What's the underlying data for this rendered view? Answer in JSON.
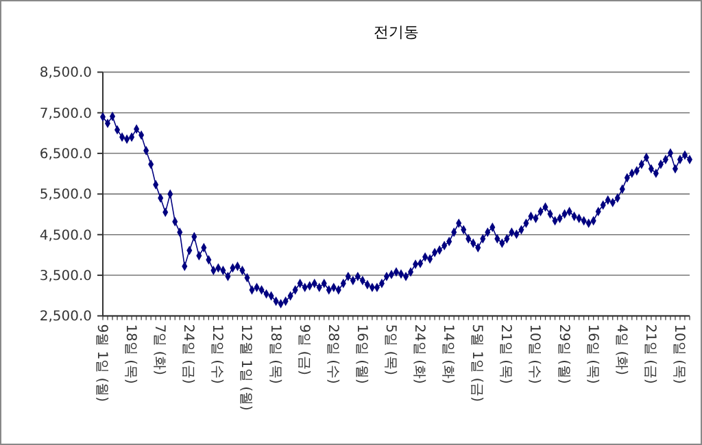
{
  "chart_data": {
    "type": "line",
    "title": "전기동",
    "categories": [
      "9월 1일 (월)",
      null,
      null,
      null,
      null,
      null,
      "18일 (목)",
      null,
      null,
      null,
      null,
      null,
      "7일 (화)",
      null,
      null,
      null,
      null,
      null,
      "24일 (금)",
      null,
      null,
      null,
      null,
      null,
      "12일 (수)",
      null,
      null,
      null,
      null,
      null,
      "12월 1일 (월)",
      null,
      null,
      null,
      null,
      null,
      "18일 (목)",
      null,
      null,
      null,
      null,
      null,
      "9일 (금)",
      null,
      null,
      null,
      null,
      null,
      "28일 (수)",
      null,
      null,
      null,
      null,
      null,
      "16일 (월)",
      null,
      null,
      null,
      null,
      null,
      "5일 (목)",
      null,
      null,
      null,
      null,
      null,
      "24일 (화)",
      null,
      null,
      null,
      null,
      null,
      "14일 (화)",
      null,
      null,
      null,
      null,
      null,
      "5월 1일 (금)",
      null,
      null,
      null,
      null,
      null,
      "21일 (목)",
      null,
      null,
      null,
      null,
      null,
      "10일 (수)",
      null,
      null,
      null,
      null,
      null,
      "29일 (월)",
      null,
      null,
      null,
      null,
      null,
      "16일 (목)",
      null,
      null,
      null,
      null,
      null,
      "4일 (화)",
      null,
      null,
      null,
      null,
      null,
      "21일 (금)",
      null,
      null,
      null,
      null,
      null,
      "10일 (목)",
      null,
      null
    ],
    "series": [
      {
        "color": "#000080",
        "values": [
          7400,
          7240,
          7410,
          7080,
          6900,
          6850,
          6900,
          7100,
          6950,
          6570,
          6230,
          5730,
          5400,
          5050,
          5500,
          4820,
          4560,
          3720,
          4110,
          4450,
          3980,
          4180,
          3880,
          3620,
          3680,
          3620,
          3470,
          3680,
          3720,
          3620,
          3440,
          3140,
          3200,
          3140,
          3040,
          2990,
          2860,
          2800,
          2860,
          2990,
          3140,
          3300,
          3200,
          3240,
          3300,
          3200,
          3300,
          3140,
          3200,
          3140,
          3300,
          3470,
          3370,
          3470,
          3370,
          3270,
          3200,
          3200,
          3300,
          3470,
          3520,
          3580,
          3530,
          3470,
          3580,
          3770,
          3790,
          3950,
          3900,
          4060,
          4120,
          4230,
          4330,
          4560,
          4780,
          4620,
          4400,
          4290,
          4180,
          4400,
          4560,
          4680,
          4400,
          4290,
          4400,
          4560,
          4510,
          4620,
          4780,
          4950,
          4900,
          5070,
          5180,
          5010,
          4840,
          4900,
          5010,
          5070,
          4950,
          4900,
          4840,
          4780,
          4840,
          5070,
          5230,
          5350,
          5290,
          5400,
          5620,
          5900,
          6010,
          6070,
          6230,
          6400,
          6120,
          6010,
          6230,
          6350,
          6510,
          6120,
          6350,
          6460,
          6350
        ]
      }
    ],
    "ylim": [
      2500,
      8500
    ],
    "yticks": [
      {
        "value": 2500,
        "label": "2,500.0"
      },
      {
        "value": 3500,
        "label": "3,500.0"
      },
      {
        "value": 4500,
        "label": "4,500.0"
      },
      {
        "value": 5500,
        "label": "5,500.0"
      },
      {
        "value": 6500,
        "label": "6,500.0"
      },
      {
        "value": 7500,
        "label": "7,500.0"
      },
      {
        "value": 8500,
        "label": "8,500.0"
      }
    ],
    "grid": "y",
    "marker": "diamond",
    "line_style": "solid"
  }
}
